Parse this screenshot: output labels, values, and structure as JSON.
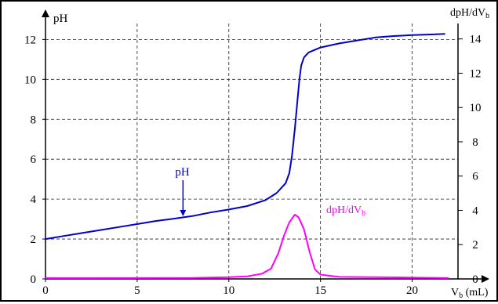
{
  "chart_data": {
    "type": "line",
    "title": "",
    "xlabel": "V",
    "xlabel_sub": "b",
    "xlabel_unit": " (mL)",
    "ylabel_left": "pH",
    "ylabel_right": "dpH/dV",
    "ylabel_right_sub": "b",
    "xlim": [
      0,
      22.5
    ],
    "ylim_left": [
      0,
      12.8
    ],
    "ylim_right": [
      0,
      14.9
    ],
    "x_ticks": [
      0,
      5,
      10,
      15,
      20
    ],
    "y_ticks_left": [
      0,
      2,
      4,
      6,
      8,
      10,
      12
    ],
    "y_ticks_right": [
      0,
      2,
      4,
      6,
      8,
      10,
      12,
      14
    ],
    "grid": "dashed",
    "series": [
      {
        "name": "pH",
        "axis": "left",
        "color": "#0000cc",
        "points": [
          [
            0,
            2.0
          ],
          [
            1,
            2.15
          ],
          [
            2,
            2.3
          ],
          [
            3,
            2.45
          ],
          [
            4,
            2.6
          ],
          [
            5,
            2.75
          ],
          [
            6,
            2.9
          ],
          [
            7,
            3.02
          ],
          [
            8,
            3.15
          ],
          [
            9,
            3.33
          ],
          [
            10,
            3.48
          ],
          [
            11,
            3.65
          ],
          [
            12,
            3.95
          ],
          [
            12.6,
            4.3
          ],
          [
            13.1,
            4.8
          ],
          [
            13.3,
            5.3
          ],
          [
            13.45,
            6.2
          ],
          [
            13.6,
            7.5
          ],
          [
            13.75,
            9.0
          ],
          [
            13.85,
            10.0
          ],
          [
            13.95,
            10.7
          ],
          [
            14.1,
            11.1
          ],
          [
            14.35,
            11.35
          ],
          [
            15,
            11.6
          ],
          [
            16,
            11.8
          ],
          [
            17,
            11.95
          ],
          [
            18,
            12.1
          ],
          [
            19,
            12.17
          ],
          [
            20,
            12.22
          ],
          [
            21,
            12.25
          ],
          [
            21.8,
            12.28
          ]
        ]
      },
      {
        "name": "dpH/dV",
        "name_sub": "b",
        "axis": "right",
        "color": "#ff00ff",
        "points": [
          [
            0,
            0.05
          ],
          [
            8,
            0.06
          ],
          [
            10,
            0.1
          ],
          [
            11,
            0.15
          ],
          [
            11.8,
            0.3
          ],
          [
            12.3,
            0.6
          ],
          [
            12.7,
            1.5
          ],
          [
            13.0,
            2.5
          ],
          [
            13.3,
            3.3
          ],
          [
            13.6,
            3.75
          ],
          [
            13.8,
            3.6
          ],
          [
            14.1,
            2.9
          ],
          [
            14.4,
            1.6
          ],
          [
            14.7,
            0.55
          ],
          [
            15.0,
            0.25
          ],
          [
            16,
            0.12
          ],
          [
            18,
            0.1
          ],
          [
            20,
            0.08
          ],
          [
            22,
            0.05
          ]
        ]
      }
    ],
    "annotations": [
      {
        "text": "pH",
        "target_series": "pH",
        "target_x": 7.5
      }
    ]
  }
}
